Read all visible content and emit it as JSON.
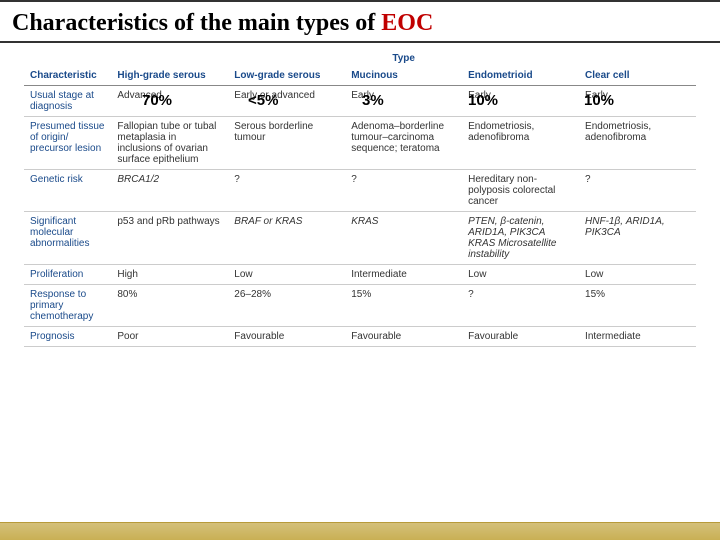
{
  "title_prefix": "Characteristics of the main types of ",
  "title_highlight": "EOC",
  "colors": {
    "title_highlight": "#c00000",
    "header_text": "#1a4a8a",
    "footer_gradient_top": "#d4c07a",
    "footer_gradient_bottom": "#c9b054",
    "border": "#333333"
  },
  "overlay_percents": {
    "col1": "70%",
    "col2": "<5%",
    "col3": "3%",
    "col4": "10%",
    "col5": "10%"
  },
  "table": {
    "type_header": "Type",
    "char_header": "Characteristic",
    "columns": [
      "High-grade serous",
      "Low-grade serous",
      "Mucinous",
      "Endometrioid",
      "Clear cell"
    ],
    "rows": [
      {
        "label": "Usual stage at diagnosis",
        "cells": [
          "Advanced",
          "Early or advanced",
          "Early",
          "Early",
          "Early"
        ]
      },
      {
        "label": "Presumed tissue of origin/ precursor lesion",
        "cells": [
          "Fallopian tube or tubal metaplasia in inclusions of ovarian surface epithelium",
          "Serous borderline tumour",
          "Adenoma–borderline tumour–carcinoma sequence; teratoma",
          "Endometriosis, adenofibroma",
          "Endometriosis, adenofibroma"
        ]
      },
      {
        "label": "Genetic risk",
        "cells": [
          "BRCA1/2",
          "?",
          "?",
          "Hereditary non-polyposis colorectal cancer",
          "?"
        ],
        "italic_idx": [
          0
        ]
      },
      {
        "label": "Significant molecular abnormalities",
        "cells": [
          "p53 and pRb pathways",
          "BRAF or KRAS",
          "KRAS",
          "PTEN, β-catenin, ARID1A, PIK3CA KRAS Microsatellite instability",
          "HNF-1β, ARID1A, PIK3CA"
        ],
        "italic_idx": [
          1,
          2,
          3,
          4
        ]
      },
      {
        "label": "Proliferation",
        "cells": [
          "High",
          "Low",
          "Intermediate",
          "Low",
          "Low"
        ]
      },
      {
        "label": "Response to primary chemotherapy",
        "cells": [
          "80%",
          "26–28%",
          "15%",
          "?",
          "15%"
        ]
      },
      {
        "label": "Prognosis",
        "cells": [
          "Poor",
          "Favourable",
          "Favourable",
          "Favourable",
          "Intermediate"
        ]
      }
    ]
  }
}
